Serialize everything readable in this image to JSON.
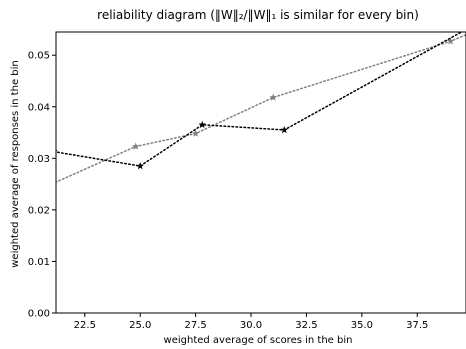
{
  "chart_data": {
    "type": "line",
    "title": "reliability diagram (‖W‖₂/‖W‖₁ is similar for every bin)",
    "xlabel": "weighted average of scores in the bin",
    "ylabel": "weighted average of responses in the bin",
    "xlim": [
      21.2,
      39.7
    ],
    "ylim": [
      0.0,
      0.0545
    ],
    "xticks": [
      22.5,
      25.0,
      27.5,
      30.0,
      32.5,
      35.0,
      37.5
    ],
    "xtick_labels": [
      "22.5",
      "25.0",
      "27.5",
      "30.0",
      "32.5",
      "35.0",
      "37.5"
    ],
    "yticks": [
      0.0,
      0.01,
      0.02,
      0.03,
      0.04,
      0.05
    ],
    "ytick_labels": [
      "0.00",
      "0.01",
      "0.02",
      "0.03",
      "0.04",
      "0.05"
    ],
    "grid": false,
    "legend": "none",
    "series": [
      {
        "color": "#808080",
        "line_style": "dotted",
        "marker": "star",
        "points": [
          [
            21.0,
            0.025
          ],
          [
            24.8,
            0.0323
          ],
          [
            27.5,
            0.0348
          ],
          [
            31.0,
            0.0418
          ],
          [
            39.0,
            0.0527
          ],
          [
            40.0,
            0.0545
          ]
        ]
      },
      {
        "color": "#000000",
        "line_style": "dotted",
        "marker": "star",
        "points": [
          [
            21.1,
            0.0313
          ],
          [
            25.0,
            0.0285
          ],
          [
            27.8,
            0.0365
          ],
          [
            31.5,
            0.0355
          ],
          [
            40.0,
            0.0557
          ]
        ]
      }
    ]
  }
}
